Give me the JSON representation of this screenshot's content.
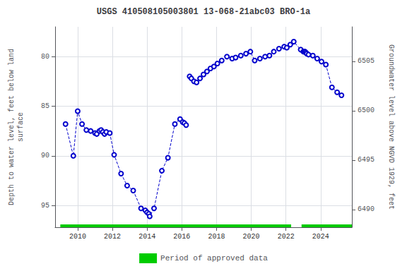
{
  "chart_data": {
    "type": "line",
    "title": "USGS 410508105003801 13-068-21abc03 BRO-1a",
    "ylabel": "Depth to water level, feet below land\nsurface",
    "y2label": "Groundwater level above NGVD 1929, feet",
    "xlim": [
      2008.7,
      2025.8
    ],
    "xticks": [
      2010,
      2012,
      2014,
      2016,
      2018,
      2020,
      2022,
      2024
    ],
    "ylim": [
      97.2,
      77.0
    ],
    "yticks": [
      80,
      85,
      90,
      95
    ],
    "y2lim": [
      6488.2,
      6508.5
    ],
    "y2ticks": [
      6490,
      6495,
      6500,
      6505
    ],
    "grid": true,
    "legend": "bottom",
    "series": [
      {
        "type": "line",
        "color": "#0000cc",
        "marker": "hollow_circle",
        "line_style": "dashed",
        "x": [
          2009.3,
          2009.75,
          2010.0,
          2010.25,
          2010.5,
          2010.75,
          2011.0,
          2011.1,
          2011.25,
          2011.35,
          2011.45,
          2011.55,
          2011.65,
          2011.85,
          2012.1,
          2012.5,
          2012.85,
          2013.2,
          2013.65,
          2013.9,
          2014.0,
          2014.1,
          2014.15,
          2014.4,
          2014.85,
          2015.2,
          2015.6,
          2015.9
        ],
        "values": [
          86.8,
          90.0,
          85.5,
          86.8,
          87.4,
          87.5,
          87.7,
          87.8,
          87.5,
          87.4,
          87.6,
          87.8,
          87.6,
          87.7,
          89.9,
          91.8,
          93.0,
          93.5,
          95.3,
          95.5,
          95.7,
          95.85,
          96.1,
          95.3,
          91.5,
          90.2,
          86.8,
          86.3
        ]
      },
      {
        "type": "line",
        "color": "#0000cc",
        "marker": "hollow_circle",
        "line_style": "dashed",
        "x": [
          2016.05,
          2016.15,
          2016.25
        ],
        "values": [
          86.6,
          86.7,
          86.9
        ]
      },
      {
        "type": "line",
        "color": "#0000cc",
        "marker": "hollow_circle",
        "line_style": "dashed",
        "x": [
          2016.45,
          2016.55,
          2016.7,
          2016.85,
          2017.05,
          2017.25,
          2017.45,
          2017.65,
          2017.85,
          2018.05,
          2018.3,
          2018.6,
          2018.9,
          2019.1,
          2019.4,
          2019.7,
          2019.95,
          2020.2,
          2020.5,
          2020.8,
          2021.05,
          2021.3,
          2021.6,
          2021.9,
          2022.05,
          2022.25,
          2022.45,
          2022.85,
          2023.0,
          2023.05,
          2023.1,
          2023.15,
          2023.2,
          2023.3,
          2023.55,
          2023.8,
          2024.05,
          2024.3,
          2024.65,
          2024.95,
          2025.2
        ],
        "values": [
          82.0,
          82.2,
          82.5,
          82.6,
          82.2,
          81.8,
          81.5,
          81.2,
          81.0,
          80.7,
          80.4,
          80.0,
          80.2,
          80.1,
          79.9,
          79.7,
          79.5,
          80.4,
          80.2,
          80.0,
          79.9,
          79.5,
          79.2,
          79.0,
          79.1,
          78.8,
          78.5,
          79.3,
          79.5,
          79.5,
          79.5,
          79.6,
          79.7,
          79.8,
          79.9,
          80.2,
          80.5,
          80.8,
          83.1,
          83.6,
          83.9
        ]
      },
      {
        "type": "span",
        "name": "Period of approved data",
        "color": "#00cc00",
        "periods": [
          [
            2009.0,
            2022.3
          ],
          [
            2022.9,
            2025.8
          ]
        ]
      }
    ]
  }
}
